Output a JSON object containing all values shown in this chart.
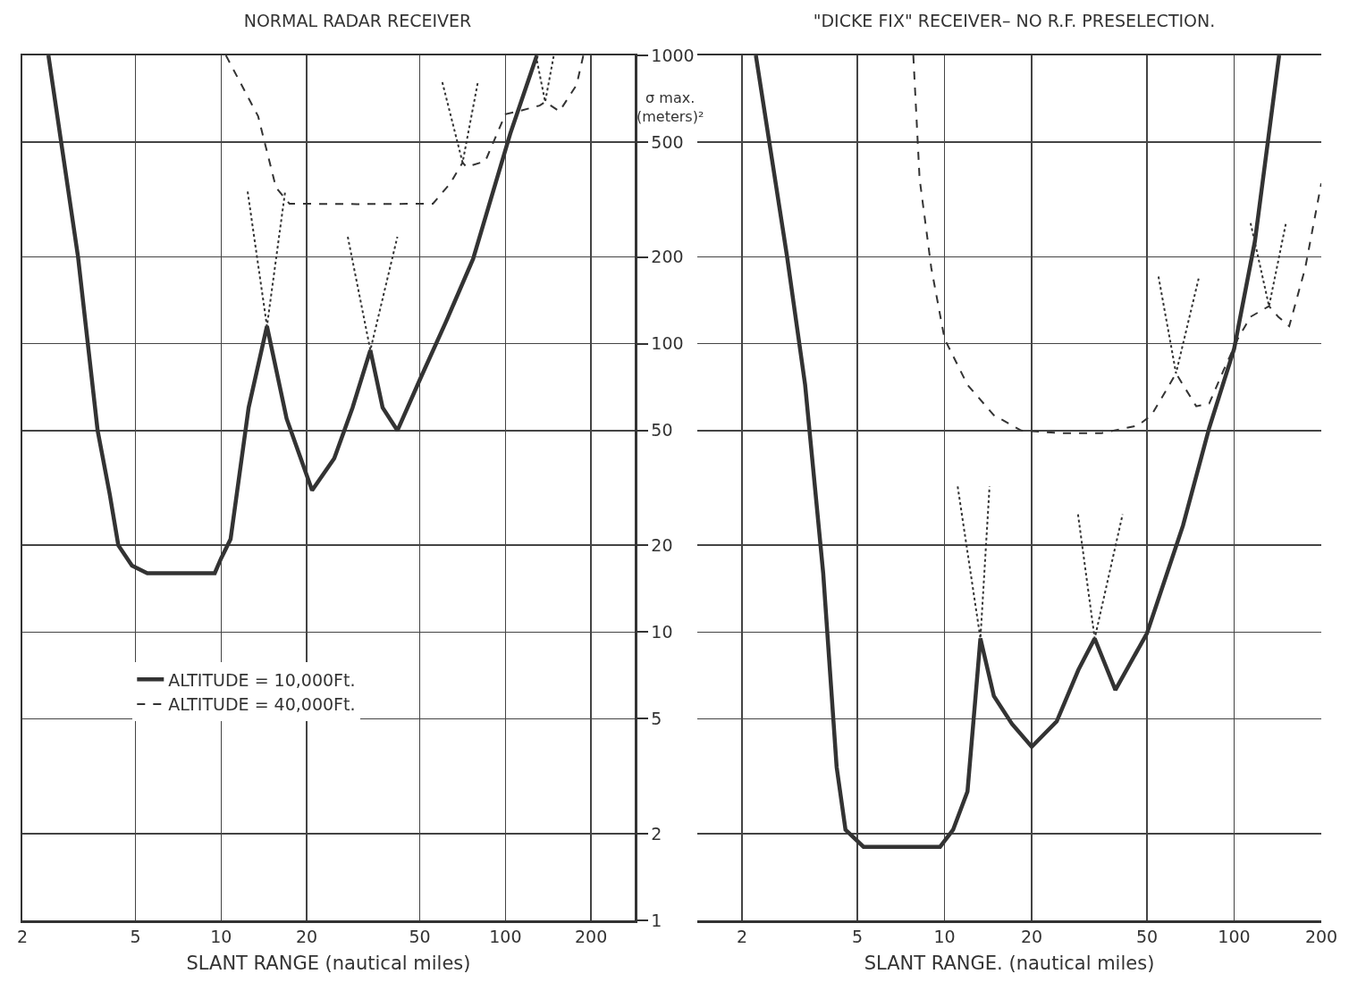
{
  "chart_data": [
    {
      "type": "line",
      "title": "NORMAL RADAR RECEIVER",
      "xlabel": "SLANT RANGE (nautical miles)",
      "ylabel": "σ max. (meters)²",
      "log": "xy",
      "grid": true,
      "legend": "bottom left",
      "xlim": [
        2,
        285
      ],
      "xticks": [
        2,
        5,
        10,
        20,
        50,
        100,
        200
      ],
      "ylim": [
        1,
        1000
      ],
      "yticks": [
        1,
        2,
        5,
        10,
        20,
        50,
        100,
        200,
        500,
        1000
      ],
      "series": [
        {
          "name": "ALTITUDE = 10,000Ft.",
          "color": "#333333",
          "line_style": "solid",
          "x": [
            2.47,
            3.14,
            3.68,
            4.06,
            4.35,
            4.86,
            5.5,
            7,
            9.5,
            10,
            10.8,
            12.5,
            14.5,
            17,
            20.9,
            25,
            29,
            33.5,
            37,
            41.7,
            50,
            62,
            77,
            104,
            129
          ],
          "values": [
            1000,
            200,
            50,
            30,
            20,
            17,
            16,
            16,
            16,
            18,
            21,
            60,
            115,
            55,
            31,
            40,
            60,
            95,
            60,
            50,
            75,
            120,
            197,
            535,
            1000
          ]
        },
        {
          "name": "ALTITUDE = 40,000Ft.",
          "color": "#333333",
          "line_style": "dashed",
          "x": [
            10.4,
            13.5,
            15.6,
            17.4,
            30,
            55.6,
            64,
            70.7,
            73,
            85,
            100,
            111,
            132,
            138,
            155,
            178,
            188
          ],
          "values": [
            1000,
            615,
            348,
            306,
            305,
            306,
            360,
            425,
            410,
            430,
            625,
            640,
            670,
            690,
            640,
            790,
            1000
          ]
        },
        {
          "color": "#333333",
          "line_style": "dotted",
          "x": [
            12.4,
            14.5,
            16.8
          ],
          "values": [
            337,
            115,
            337
          ]
        },
        {
          "color": "#333333",
          "line_style": "dotted",
          "x": [
            27.9,
            33.5,
            41.7
          ],
          "values": [
            235,
            95,
            235
          ]
        },
        {
          "color": "#333333",
          "line_style": "dotted",
          "x": [
            60,
            70.7,
            80
          ],
          "values": [
            807,
            425,
            807
          ]
        },
        {
          "color": "#333333",
          "line_style": "dotted",
          "x": [
            128,
            138,
            148
          ],
          "values": [
            1000,
            690,
            1000
          ]
        }
      ]
    },
    {
      "type": "line",
      "title": "\"DICKE FIX\" RECEIVER– NO R.F. PRESELECTION.",
      "xlabel": "SLANT RANGE. (nautical miles)",
      "log": "xy",
      "grid": true,
      "tick_labels": "x",
      "xlim": [
        1.4,
        200
      ],
      "xticks": [
        2,
        5,
        10,
        20,
        50,
        100,
        200
      ],
      "ylim": [
        1,
        1000
      ],
      "yticks": [
        1,
        2,
        5,
        10,
        20,
        50,
        100,
        200,
        500,
        1000
      ],
      "series": [
        {
          "color": "#333333",
          "line_style": "solid",
          "x": [
            2.23,
            2.86,
            3.3,
            3.81,
            4.24,
            4.55,
            5.25,
            7,
            9.65,
            10.7,
            12,
            12.8,
            13.3,
            14.8,
            17.1,
            20,
            24.4,
            29,
            33,
            38.9,
            50,
            66.6,
            82,
            100,
            118,
            143
          ],
          "values": [
            1000,
            200,
            72,
            16,
            3.4,
            2.06,
            1.8,
            1.8,
            1.8,
            2.06,
            2.8,
            6,
            9.5,
            6,
            4.8,
            4,
            4.9,
            7.4,
            9.5,
            6.3,
            9.9,
            23.4,
            51,
            96,
            227,
            1000
          ]
        },
        {
          "color": "#333333",
          "line_style": "dashed",
          "x": [
            7.8,
            8.2,
            9,
            10,
            12,
            14.8,
            18.4,
            25,
            34.9,
            46.5,
            51.8,
            57.6,
            63,
            66.6,
            74,
            82,
            92,
            103,
            114,
            132,
            142,
            155,
            176,
            200
          ],
          "values": [
            1000,
            374,
            183,
            104,
            72,
            56.5,
            50,
            49,
            49,
            52,
            56.5,
            67.6,
            79,
            72,
            60.7,
            62,
            81,
            104,
            124,
            135,
            124,
            115,
            183,
            360
          ]
        },
        {
          "color": "#333333",
          "line_style": "dotted",
          "x": [
            11.1,
            13.3,
            14.3
          ],
          "values": [
            32,
            9.5,
            32
          ]
        },
        {
          "color": "#333333",
          "line_style": "dotted",
          "x": [
            28.9,
            33,
            41.2
          ],
          "values": [
            25.6,
            9.5,
            25.6
          ]
        },
        {
          "color": "#333333",
          "line_style": "dotted",
          "x": [
            54.8,
            63,
            75.7
          ],
          "values": [
            171,
            79,
            171
          ]
        },
        {
          "color": "#333333",
          "line_style": "dotted",
          "x": [
            114,
            132,
            151
          ],
          "values": [
            262,
            135,
            262
          ]
        }
      ]
    }
  ]
}
